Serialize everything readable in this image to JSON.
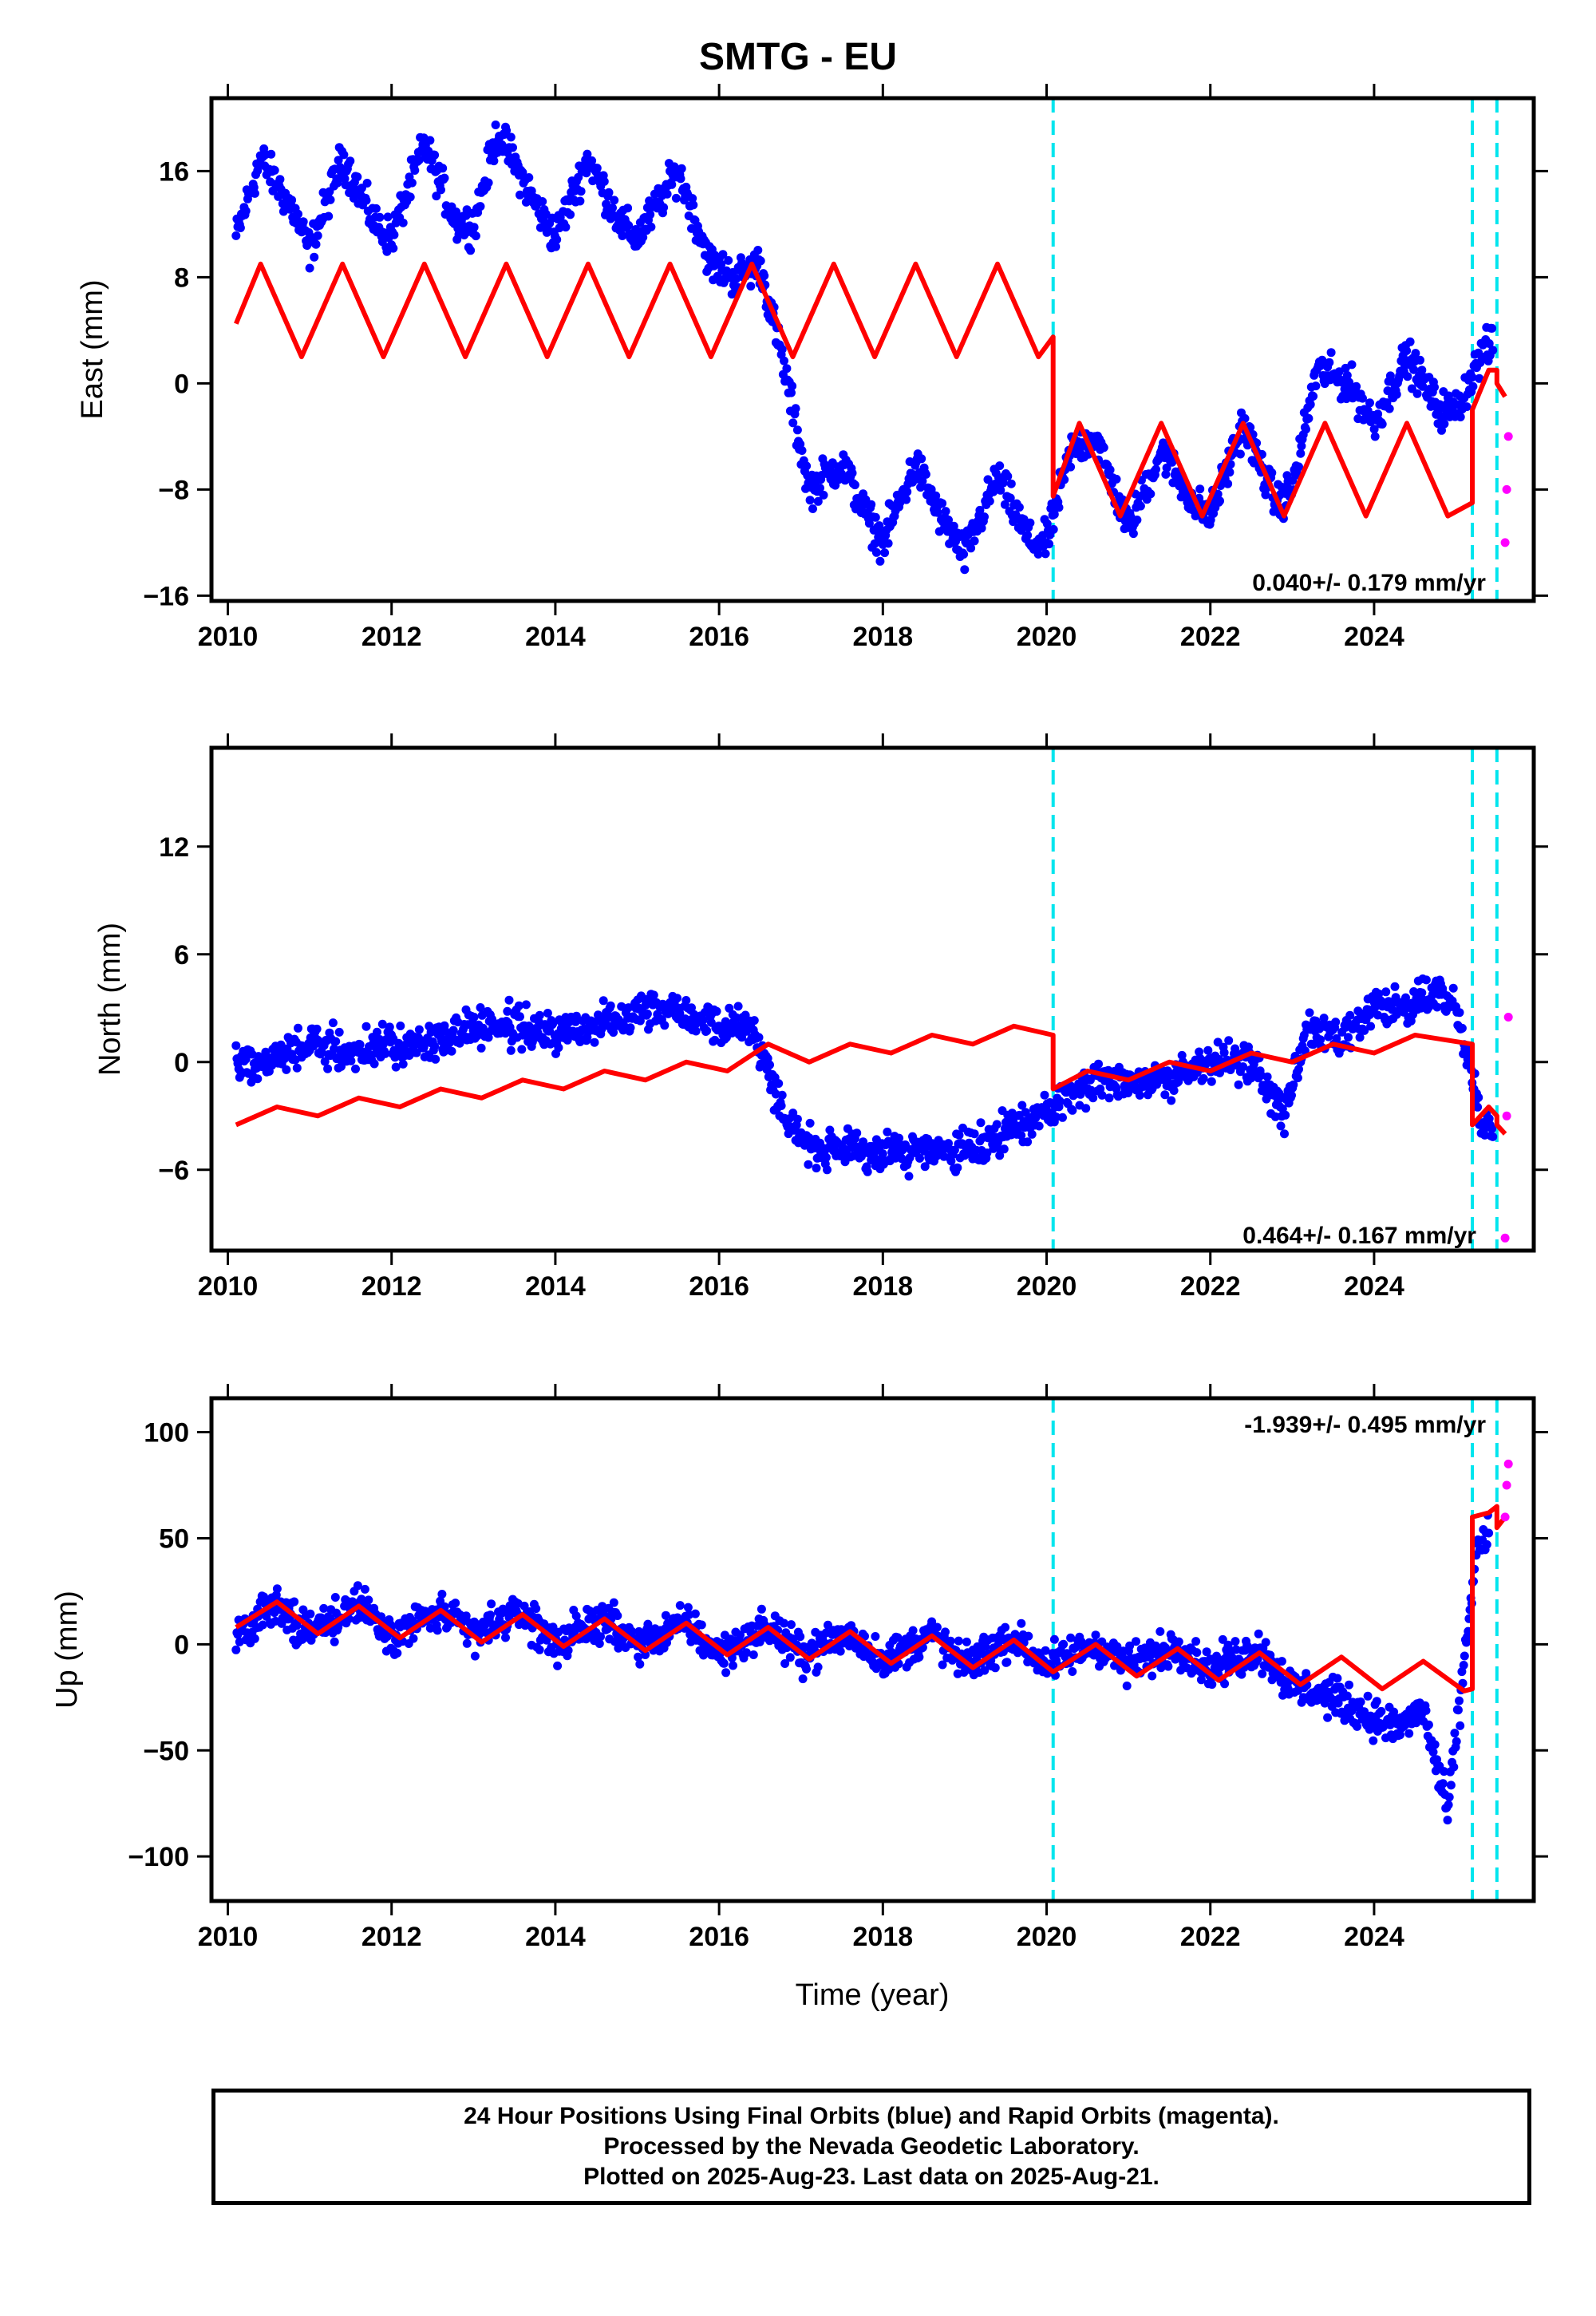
{
  "title": "SMTG - EU",
  "colors": {
    "final_orbits": "#0000ff",
    "rapid_orbits": "#ff00ff",
    "model": "#ff0000",
    "event_lines": "#00e5ee",
    "frame": "#000000"
  },
  "caption": {
    "line1": "24 Hour Positions Using Final Orbits (blue) and Rapid Orbits (magenta).",
    "line2": "Processed by the Nevada Geodetic Laboratory.",
    "line3": "Plotted on 2025-Aug-23. Last data on 2025-Aug-21."
  },
  "chart_data": [
    {
      "type": "scatter",
      "component": "east",
      "ylabel": "East (mm)",
      "xlabel": "",
      "xlim": [
        2009.8,
        2025.95
      ],
      "ylim": [
        -16.4,
        21.5
      ],
      "x_ticks": [
        2010,
        2012,
        2014,
        2016,
        2018,
        2020,
        2022,
        2024
      ],
      "y_ticks": [
        -16,
        -8,
        0,
        8,
        16
      ],
      "y_tick_labels": [
        "−16",
        "−8",
        "0",
        "8",
        "16"
      ],
      "rate_label": "0.040+/- 0.179 mm/yr",
      "rate_position": "bottom-right",
      "event_lines": [
        2020.08,
        2025.2,
        2025.5
      ],
      "series": [
        {
          "kind": "daily_final",
          "x": [
            2010.1,
            2010.4,
            2010.8,
            2011.0,
            2011.4,
            2011.8,
            2012.0,
            2012.4,
            2012.8,
            2013.0,
            2013.3,
            2013.8,
            2014.0,
            2014.4,
            2014.8,
            2015.0,
            2015.5,
            2015.9,
            2016.2,
            2016.5,
            2016.8,
            2017.1,
            2017.5,
            2017.8,
            2018.0,
            2018.4,
            2018.7,
            2019.0,
            2019.4,
            2019.8,
            2020.0,
            2020.3,
            2020.6,
            2021.0,
            2021.4,
            2021.8,
            2022.0,
            2022.4,
            2022.8,
            2023.0,
            2023.3,
            2023.7,
            2024.0,
            2024.4,
            2024.8,
            2025.0,
            2025.3,
            2025.45
          ],
          "y": [
            11,
            17,
            13,
            10,
            17,
            12,
            11,
            18,
            12,
            12,
            19,
            13,
            11,
            17,
            12,
            11,
            16,
            9,
            8,
            9,
            1,
            -8,
            -6,
            -10,
            -12,
            -6,
            -10,
            -13,
            -7,
            -12,
            -12,
            -5,
            -4,
            -11,
            -5,
            -9,
            -10,
            -3,
            -9,
            -8,
            1,
            0,
            -3,
            2,
            -2,
            -2,
            2,
            3
          ]
        },
        {
          "kind": "model",
          "x": [
            2010.1,
            2010.4,
            2010.9,
            2011.4,
            2011.9,
            2012.4,
            2012.9,
            2013.4,
            2013.9,
            2014.4,
            2014.9,
            2015.4,
            2015.9,
            2016.4,
            2016.9,
            2017.4,
            2017.9,
            2018.4,
            2018.9,
            2019.4,
            2019.9,
            2020.08,
            2020.08,
            2020.4,
            2020.9,
            2021.4,
            2021.9,
            2022.4,
            2022.9,
            2023.4,
            2023.9,
            2024.4,
            2024.9,
            2025.2,
            2025.2,
            2025.4,
            2025.5,
            2025.5,
            2025.6
          ],
          "y": [
            4.5,
            9,
            2,
            9,
            2,
            9,
            2,
            9,
            2,
            9,
            2,
            9,
            2,
            9,
            2,
            9,
            2,
            9,
            2,
            9,
            2,
            3.5,
            -8.5,
            -3,
            -10,
            -3,
            -10,
            -3,
            -10,
            -3,
            -10,
            -3,
            -10,
            -9,
            -2,
            1,
            1,
            0,
            -1
          ]
        },
        {
          "kind": "daily_rapid",
          "x": [
            2025.6,
            2025.62,
            2025.64
          ],
          "y": [
            -12,
            -8,
            -4
          ]
        }
      ]
    },
    {
      "type": "scatter",
      "component": "north",
      "ylabel": "North (mm)",
      "xlabel": "",
      "xlim": [
        2009.8,
        2025.95
      ],
      "ylim": [
        -10.5,
        17.5
      ],
      "x_ticks": [
        2010,
        2012,
        2014,
        2016,
        2018,
        2020,
        2022,
        2024
      ],
      "y_ticks": [
        -6,
        0,
        6,
        12
      ],
      "y_tick_labels": [
        "−6",
        "0",
        "6",
        "12"
      ],
      "rate_label": "0.464+/- 0.167 mm/yr",
      "rate_position": "bottom-right",
      "event_lines": [
        2020.08,
        2025.2,
        2025.5
      ],
      "series": [
        {
          "kind": "daily_final",
          "x": [
            2010.1,
            2010.5,
            2011.0,
            2011.5,
            2012.0,
            2012.5,
            2013.0,
            2013.5,
            2014.0,
            2014.5,
            2015.0,
            2015.5,
            2016.0,
            2016.4,
            2016.8,
            2017.2,
            2017.6,
            2018.0,
            2018.5,
            2019.0,
            2019.5,
            2019.9,
            2020.2,
            2020.6,
            2021.0,
            2021.5,
            2022.0,
            2022.5,
            2022.9,
            2023.2,
            2023.6,
            2024.0,
            2024.4,
            2024.8,
            2025.0,
            2025.3,
            2025.45
          ],
          "y": [
            0,
            0,
            1,
            0.5,
            1,
            1,
            2,
            2,
            1.5,
            2,
            3,
            3,
            2,
            2,
            -3,
            -5,
            -5,
            -5,
            -5,
            -5,
            -4,
            -3,
            -2,
            -1,
            -1,
            -1,
            0,
            0,
            -3,
            2,
            1,
            3,
            3,
            4,
            3,
            -3,
            -4
          ]
        },
        {
          "kind": "model",
          "x": [
            2010.1,
            2010.6,
            2011.1,
            2011.6,
            2012.1,
            2012.6,
            2013.1,
            2013.6,
            2014.1,
            2014.6,
            2015.1,
            2015.6,
            2016.1,
            2016.6,
            2017.1,
            2017.6,
            2018.1,
            2018.6,
            2019.1,
            2019.6,
            2020.08,
            2020.08,
            2020.5,
            2021.0,
            2021.5,
            2022.0,
            2022.5,
            2023.0,
            2023.5,
            2024.0,
            2024.5,
            2025.2,
            2025.2,
            2025.4,
            2025.5,
            2025.5,
            2025.6
          ],
          "y": [
            -3.5,
            -2.5,
            -3,
            -2,
            -2.5,
            -1.5,
            -2,
            -1,
            -1.5,
            -0.5,
            -1,
            0,
            -0.5,
            1,
            0,
            1,
            0.5,
            1.5,
            1,
            2,
            1.5,
            -1.5,
            -0.5,
            -1,
            0,
            -0.5,
            0.5,
            0,
            1,
            0.5,
            1.5,
            1,
            -3.5,
            -2.5,
            -3,
            -3.5,
            -4
          ]
        },
        {
          "kind": "daily_rapid",
          "x": [
            2025.6,
            2025.62,
            2025.64
          ],
          "y": [
            -9.8,
            -3,
            2.5
          ]
        }
      ]
    },
    {
      "type": "scatter",
      "component": "up",
      "ylabel": "Up (mm)",
      "xlabel": "Time (year)",
      "xlim": [
        2009.8,
        2025.95
      ],
      "ylim": [
        -121,
        116
      ],
      "x_ticks": [
        2010,
        2012,
        2014,
        2016,
        2018,
        2020,
        2022,
        2024
      ],
      "y_ticks": [
        -100,
        -50,
        0,
        50,
        100
      ],
      "y_tick_labels": [
        "−100",
        "−50",
        "0",
        "50",
        "100"
      ],
      "rate_label": "-1.939+/- 0.495 mm/yr",
      "rate_position": "top-right",
      "event_lines": [
        2020.08,
        2025.2,
        2025.5
      ],
      "series": [
        {
          "kind": "daily_final",
          "x": [
            2010.1,
            2010.6,
            2011.0,
            2011.6,
            2012.0,
            2012.6,
            2013.0,
            2013.6,
            2014.0,
            2014.6,
            2015.0,
            2015.6,
            2016.0,
            2016.6,
            2017.0,
            2017.6,
            2018.0,
            2018.6,
            2019.0,
            2019.6,
            2020.0,
            2020.6,
            2021.0,
            2021.6,
            2022.0,
            2022.6,
            2023.0,
            2023.5,
            2024.0,
            2024.3,
            2024.6,
            2024.9,
            2025.25,
            2025.4
          ],
          "y": [
            5,
            18,
            5,
            20,
            5,
            15,
            5,
            15,
            0,
            12,
            0,
            10,
            -5,
            8,
            -5,
            5,
            -8,
            5,
            -10,
            3,
            -10,
            0,
            -10,
            0,
            -12,
            -2,
            -20,
            -25,
            -35,
            -40,
            -30,
            -80,
            45,
            50
          ]
        },
        {
          "kind": "model",
          "x": [
            2010.1,
            2010.6,
            2011.1,
            2011.6,
            2012.1,
            2012.6,
            2013.1,
            2013.6,
            2014.1,
            2014.6,
            2015.1,
            2015.6,
            2016.1,
            2016.6,
            2017.1,
            2017.6,
            2018.1,
            2018.6,
            2019.1,
            2019.6,
            2020.08,
            2020.6,
            2021.1,
            2021.6,
            2022.1,
            2022.6,
            2023.1,
            2023.6,
            2024.1,
            2024.6,
            2025.1,
            2025.2,
            2025.2,
            2025.4,
            2025.5,
            2025.5,
            2025.6
          ],
          "y": [
            8,
            20,
            5,
            18,
            3,
            16,
            1,
            14,
            -1,
            12,
            -3,
            10,
            -5,
            8,
            -7,
            6,
            -9,
            4,
            -11,
            2,
            -13,
            0,
            -15,
            -2,
            -17,
            -4,
            -19,
            -6,
            -21,
            -8,
            -22,
            -21,
            60,
            62,
            65,
            55,
            60
          ]
        },
        {
          "kind": "daily_rapid",
          "x": [
            2025.6,
            2025.62,
            2025.64
          ],
          "y": [
            60,
            75,
            85
          ]
        }
      ]
    }
  ]
}
